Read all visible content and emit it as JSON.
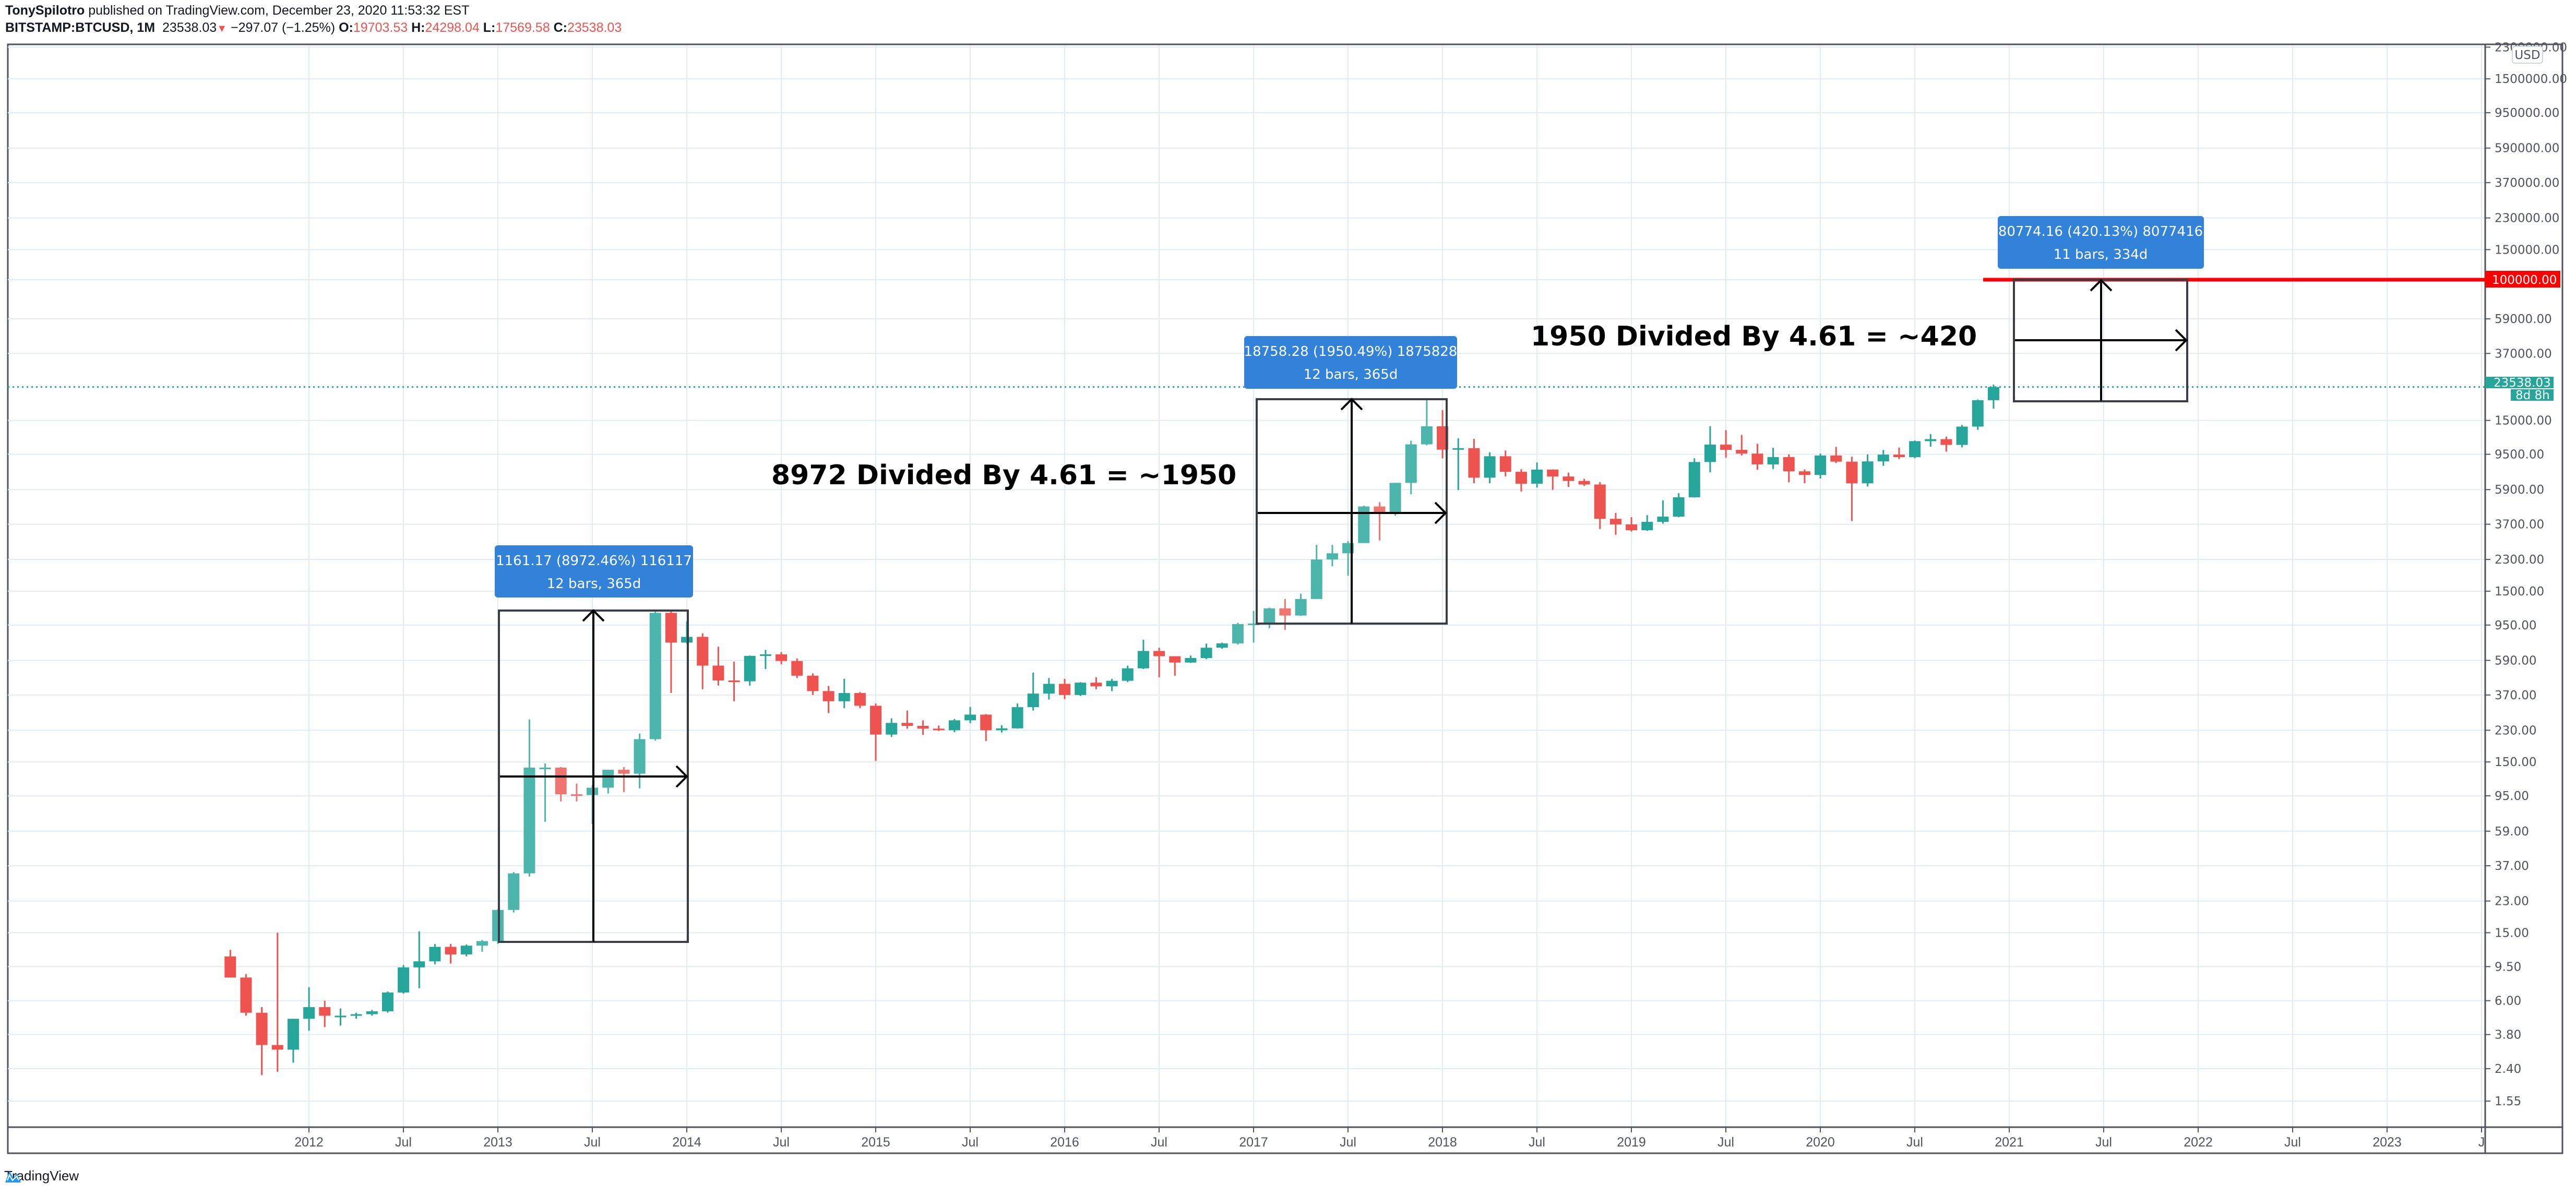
{
  "header": {
    "author": "TonySpilotro",
    "published": "published on TradingView.com, December 23, 2020 11:53:32 EST",
    "symbol": "BITSTAMP:BTCUSD, 1M",
    "last": "23538.03",
    "change": "−297.07 (−1.25%)",
    "o_label": "O:",
    "o": "19703.53",
    "h_label": "H:",
    "h": "24298.04",
    "l_label": "L:",
    "l": "17569.58",
    "c_label": "C:",
    "c": "23538.03",
    "direction_icon": "triangle-down-icon"
  },
  "price_axis": {
    "currency": "USD",
    "labels": [
      "2300000.00",
      "1500000.00",
      "950000.00",
      "590000.00",
      "370000.00",
      "230000.00",
      "150000.00",
      "100000.00",
      "59000.00",
      "37000.00",
      "23538.03",
      "15000.00",
      "9500.00",
      "5900.00",
      "3700.00",
      "2300.00",
      "1500.00",
      "950.00",
      "590.00",
      "370.00",
      "230.00",
      "150.00",
      "95.00",
      "59.00",
      "37.00",
      "23.00",
      "15.00",
      "9.50",
      "6.00",
      "3.80",
      "2.40",
      "1.55"
    ],
    "last_price_label": "23538.03",
    "countdown_label": "8d 8h",
    "horizontal_line_label": "100000.00"
  },
  "time_axis": {
    "labels": [
      "2012",
      "Jul",
      "2013",
      "Jul",
      "2014",
      "Jul",
      "2015",
      "Jul",
      "2016",
      "Jul",
      "2017",
      "Jul",
      "2018",
      "Jul",
      "2019",
      "Jul",
      "2020",
      "Jul",
      "2021",
      "Jul",
      "2022",
      "Jul",
      "2023",
      "J"
    ]
  },
  "annotations": {
    "measure_1": {
      "line1": "1161.17 (8972.46%) 116117",
      "line2": "12 bars, 365d"
    },
    "measure_2": {
      "line1": "18758.28 (1950.49%) 1875828",
      "line2": "12 bars, 365d"
    },
    "measure_3": {
      "line1": "80774.16 (420.13%) 8077416",
      "line2": "11 bars, 334d"
    },
    "text_1": "8972 Divided By 4.61 = ~1950",
    "text_2": "1950 Divided By 4.61 = ~420"
  },
  "colors": {
    "up": "#26a69a",
    "up_light": "#4db6ac",
    "down": "#ef5350",
    "down_light": "#f07470",
    "measure_label_bg": "#3182d8",
    "horizontal_line": "#ff0000",
    "grid": "#e1ecf2"
  },
  "footer": {
    "brand": "TradingView"
  },
  "chart_data": {
    "type": "candlestick",
    "title": "BITSTAMP:BTCUSD, 1M",
    "scale": "log",
    "ylabel": "USD",
    "ylim": [
      1.4,
      2300000
    ],
    "x_start": "2011-08",
    "x_unit": "month",
    "horizontal_line": 100000,
    "last_price": 23538.03,
    "ohlc": [
      [
        10.9,
        11.9,
        8.6,
        8.2
      ],
      [
        8.2,
        8.6,
        4.9,
        5.1
      ],
      [
        5.1,
        5.5,
        2.2,
        3.3
      ],
      [
        3.3,
        15.0,
        2.3,
        3.1
      ],
      [
        3.1,
        4.7,
        2.6,
        4.7
      ],
      [
        4.7,
        7.2,
        4.0,
        5.5
      ],
      [
        5.5,
        6.0,
        4.2,
        4.9
      ],
      [
        4.9,
        5.4,
        4.3,
        4.9
      ],
      [
        4.9,
        5.1,
        4.7,
        5.0
      ],
      [
        5.0,
        5.3,
        4.9,
        5.2
      ],
      [
        5.2,
        6.8,
        5.1,
        6.7
      ],
      [
        6.7,
        9.7,
        6.6,
        9.4
      ],
      [
        9.4,
        15.3,
        7.1,
        10.2
      ],
      [
        10.2,
        12.9,
        9.8,
        12.4
      ],
      [
        12.4,
        12.9,
        9.9,
        11.2
      ],
      [
        11.2,
        12.8,
        10.9,
        12.6
      ],
      [
        12.6,
        13.6,
        11.6,
        13.4
      ],
      [
        13.4,
        20.6,
        12.9,
        20.4
      ],
      [
        20.4,
        34.0,
        19.7,
        33.4
      ],
      [
        33.4,
        266.0,
        32.0,
        139.0
      ],
      [
        139.0,
        147.0,
        67.0,
        139.0
      ],
      [
        139.0,
        140.0,
        88.0,
        97.0
      ],
      [
        97.0,
        112.0,
        88.0,
        96.0
      ],
      [
        96.0,
        110.0,
        65.0,
        106.0
      ],
      [
        106.0,
        125.0,
        98.0,
        135.0
      ],
      [
        135.0,
        140.0,
        100.0,
        128.0
      ],
      [
        128.0,
        220.0,
        105.0,
        204.0
      ],
      [
        204.0,
        1165.0,
        200.0,
        1120.0
      ],
      [
        1120.0,
        1165.0,
        380.0,
        750.0
      ],
      [
        750.0,
        1000.0,
        740.0,
        810.0
      ],
      [
        810.0,
        850.0,
        400.0,
        550.0
      ],
      [
        550.0,
        710.0,
        420.0,
        450.0
      ],
      [
        450.0,
        580.0,
        340.0,
        445.0
      ],
      [
        445.0,
        630.0,
        420.0,
        627.0
      ],
      [
        627.0,
        680.0,
        525.0,
        640.0
      ],
      [
        640.0,
        660.0,
        560.0,
        585.0
      ],
      [
        585.0,
        605.0,
        465.0,
        480.0
      ],
      [
        480.0,
        495.0,
        370.0,
        390.0
      ],
      [
        390.0,
        418.0,
        290.0,
        340.0
      ],
      [
        340.0,
        460.0,
        310.0,
        380.0
      ],
      [
        380.0,
        385.0,
        310.0,
        320.0
      ],
      [
        320.0,
        330.0,
        152.0,
        217.0
      ],
      [
        217.0,
        270.0,
        210.0,
        254.0
      ],
      [
        254.0,
        300.0,
        235.0,
        244.0
      ],
      [
        244.0,
        263.0,
        216.0,
        235.0
      ],
      [
        235.0,
        245.0,
        228.0,
        230.0
      ],
      [
        230.0,
        268.0,
        224.0,
        263.0
      ],
      [
        263.0,
        315.0,
        253.0,
        284.0
      ],
      [
        284.0,
        286.0,
        199.0,
        230.0
      ],
      [
        230.0,
        246.0,
        223.0,
        236.0
      ],
      [
        236.0,
        330.0,
        235.0,
        314.0
      ],
      [
        314.0,
        500.0,
        300.0,
        377.0
      ],
      [
        377.0,
        465.0,
        348.0,
        430.0
      ],
      [
        430.0,
        460.0,
        350.0,
        370.0
      ],
      [
        370.0,
        440.0,
        365.0,
        437.0
      ],
      [
        437.0,
        470.0,
        400.0,
        416.0
      ],
      [
        416.0,
        460.0,
        390.0,
        448.0
      ],
      [
        448.0,
        550.0,
        440.0,
        530.0
      ],
      [
        530.0,
        780.0,
        525.0,
        670.0
      ],
      [
        670.0,
        700.0,
        470.0,
        624.0
      ],
      [
        624.0,
        620.0,
        480.0,
        573.0
      ],
      [
        573.0,
        630.0,
        570.0,
        609.0
      ],
      [
        609.0,
        740.0,
        600.0,
        700.0
      ],
      [
        700.0,
        750.0,
        690.0,
        742.0
      ],
      [
        742.0,
        980.0,
        730.0,
        963.0
      ],
      [
        963.0,
        1150.0,
        750.0,
        970.0
      ],
      [
        970.0,
        1200.0,
        910.0,
        1190.0
      ],
      [
        1190.0,
        1350.0,
        890.0,
        1080.0
      ],
      [
        1080.0,
        1450.0,
        1075.0,
        1350.0
      ],
      [
        1350.0,
        2800.0,
        1350.0,
        2300.0
      ],
      [
        2300.0,
        2800.0,
        2100.0,
        2500.0
      ],
      [
        2500.0,
        2950.0,
        1850.0,
        2870.0
      ],
      [
        2870.0,
        4750.0,
        2870.0,
        4700.0
      ],
      [
        4700.0,
        4980.0,
        2970.0,
        4340.0
      ],
      [
        4340.0,
        6470.0,
        4150.0,
        6460.0
      ],
      [
        6460.0,
        11400.0,
        5550.0,
        10860.0
      ],
      [
        10860.0,
        19660.0,
        10720.0,
        13860.0
      ],
      [
        13860.0,
        17200.0,
        9000.0,
        10110.0
      ],
      [
        10110.0,
        11790.0,
        5870.0,
        10320.0
      ],
      [
        10320.0,
        11700.0,
        6430.0,
        6930.0
      ],
      [
        6930.0,
        9750.0,
        6430.0,
        9250.0
      ],
      [
        9250.0,
        10000.0,
        7050.0,
        7500.0
      ],
      [
        7500.0,
        7770.0,
        5750.0,
        6390.0
      ],
      [
        6390.0,
        8500.0,
        6070.0,
        7730.0
      ],
      [
        7730.0,
        7750.0,
        5880.0,
        7040.0
      ],
      [
        7040.0,
        7420.0,
        6120.0,
        6630.0
      ],
      [
        6630.0,
        6820.0,
        6200.0,
        6320.0
      ],
      [
        6320.0,
        6520.0,
        3470.0,
        3980.0
      ],
      [
        3980.0,
        4310.0,
        3210.0,
        3690.0
      ],
      [
        3690.0,
        4070.0,
        3350.0,
        3410.0
      ],
      [
        3410.0,
        4180.0,
        3380.0,
        3820.0
      ],
      [
        3820.0,
        5100.0,
        3730.0,
        4100.0
      ],
      [
        4100.0,
        5620.0,
        4070.0,
        5320.0
      ],
      [
        5320.0,
        9000.0,
        5300.0,
        8560.0
      ],
      [
        8560.0,
        13880.0,
        7440.0,
        10820.0
      ],
      [
        10820.0,
        13150.0,
        9070.0,
        10080.0
      ],
      [
        10080.0,
        12330.0,
        9350.0,
        9590.0
      ],
      [
        9590.0,
        10950.0,
        7710.0,
        8290.0
      ],
      [
        8290.0,
        10370.0,
        7790.0,
        9150.0
      ],
      [
        9150.0,
        9510.0,
        6510.0,
        7550.0
      ],
      [
        7550.0,
        7750.0,
        6430.0,
        7190.0
      ],
      [
        7190.0,
        9590.0,
        6850.0,
        9350.0
      ],
      [
        9350.0,
        10500.0,
        8440.0,
        8600.0
      ],
      [
        8600.0,
        9190.0,
        3860.0,
        6420.0
      ],
      [
        6420.0,
        9480.0,
        6150.0,
        8630.0
      ],
      [
        8630.0,
        10060.0,
        8130.0,
        9460.0
      ],
      [
        9460.0,
        10400.0,
        8900.0,
        9140.0
      ],
      [
        9140.0,
        11440.0,
        9000.0,
        11340.0
      ],
      [
        11340.0,
        12480.0,
        10520.0,
        11650.0
      ],
      [
        11650.0,
        12060.0,
        9840.0,
        10780.0
      ],
      [
        10780.0,
        14100.0,
        10430.0,
        13800.0
      ],
      [
        13800.0,
        19880.0,
        13200.0,
        19700.0
      ],
      [
        19700.0,
        24300.0,
        17570.0,
        23538.0
      ]
    ]
  }
}
